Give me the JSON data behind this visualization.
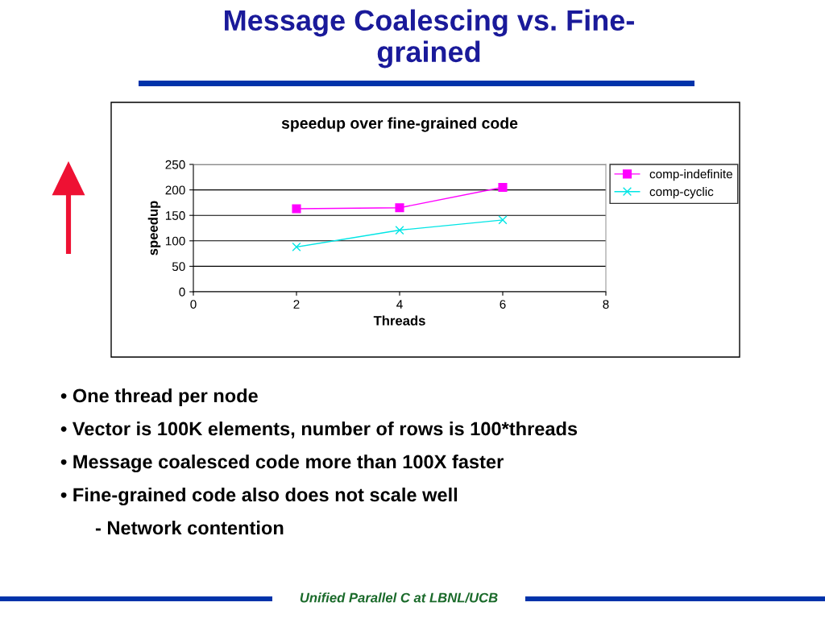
{
  "chart_data": {
    "type": "line",
    "title": "Message Coalescing vs. Fine-\ngrained",
    "subtitle": "speedup over fine-grained code",
    "xlabel": "Threads",
    "ylabel": "speedup",
    "x": [
      2,
      4,
      6
    ],
    "series": [
      {
        "name": "comp-indefinite",
        "color": "#ff00ff",
        "marker": "square",
        "values": [
          163,
          165,
          205
        ]
      },
      {
        "name": "comp-cyclic",
        "color": "#00e5e5",
        "marker": "cross",
        "values": [
          88,
          121,
          141
        ]
      }
    ],
    "xlim": [
      0,
      8
    ],
    "xticks": [
      0,
      2,
      4,
      6,
      8
    ],
    "ylim": [
      0,
      250
    ],
    "yticks": [
      0,
      50,
      100,
      150,
      200,
      250
    ],
    "grid": "y",
    "legend": "right",
    "line_style": "solid",
    "annotations": [
      "• One thread per node",
      "• Vector is 100K elements, number of rows is 100*threads",
      "• Message coalesced code more than 100X faster",
      "• Fine-grained code also does not scale well",
      "- Network contention",
      "Unified Parallel C at LBNL/UCB"
    ]
  }
}
